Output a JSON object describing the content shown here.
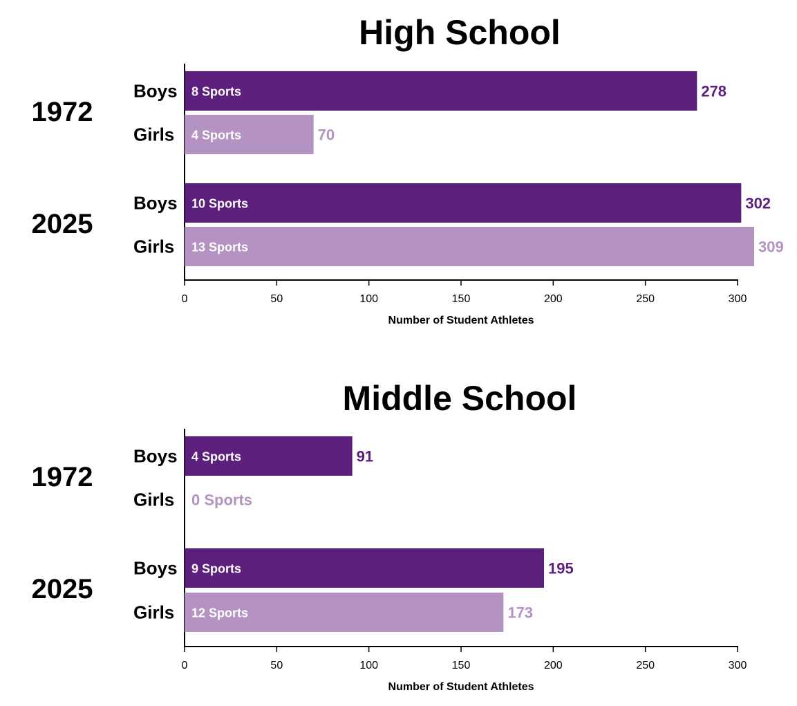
{
  "colors": {
    "boys": "#5c1f7e",
    "girls": "#b493c2",
    "axis": "#000000"
  },
  "chart_data": [
    {
      "type": "bar",
      "title": "High School",
      "xlabel": "Number of Student Athletes",
      "ylabel": "",
      "xlim": [
        0,
        300
      ],
      "ticks": [
        0,
        50,
        100,
        150,
        200,
        250,
        300
      ],
      "groups": [
        {
          "year": "1972",
          "bars": [
            {
              "label": "Boys",
              "value": 278,
              "sports": "8 Sports",
              "value_label": "278"
            },
            {
              "label": "Girls",
              "value": 70,
              "sports": "4 Sports",
              "value_label": "70"
            }
          ]
        },
        {
          "year": "2025",
          "bars": [
            {
              "label": "Boys",
              "value": 302,
              "sports": "10 Sports",
              "value_label": "302"
            },
            {
              "label": "Girls",
              "value": 309,
              "sports": "13 Sports",
              "value_label": "309"
            }
          ]
        }
      ]
    },
    {
      "type": "bar",
      "title": "Middle School",
      "xlabel": "Number of Student Athletes",
      "ylabel": "",
      "xlim": [
        0,
        300
      ],
      "ticks": [
        0,
        50,
        100,
        150,
        200,
        250,
        300
      ],
      "groups": [
        {
          "year": "1972",
          "bars": [
            {
              "label": "Boys",
              "value": 91,
              "sports": "4 Sports",
              "value_label": "91"
            },
            {
              "label": "Girls",
              "value": 0,
              "sports": "0 Sports",
              "value_label": ""
            }
          ]
        },
        {
          "year": "2025",
          "bars": [
            {
              "label": "Boys",
              "value": 195,
              "sports": "9 Sports",
              "value_label": "195"
            },
            {
              "label": "Girls",
              "value": 173,
              "sports": "12 Sports",
              "value_label": "173"
            }
          ]
        }
      ]
    }
  ]
}
